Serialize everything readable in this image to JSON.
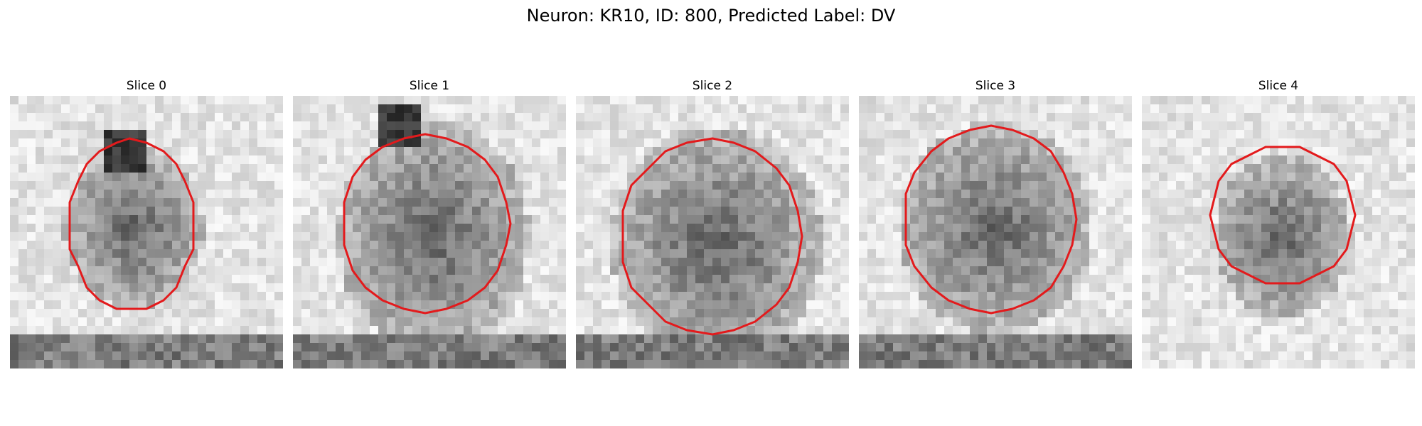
{
  "figure": {
    "title": "Neuron: KR10, ID: 800, Predicted Label: DV",
    "contour_color": "#e31a1c"
  },
  "slices": [
    {
      "title": "Slice 0"
    },
    {
      "title": "Slice 1"
    },
    {
      "title": "Slice 2"
    },
    {
      "title": "Slice 3"
    },
    {
      "title": "Slice 4"
    }
  ]
}
